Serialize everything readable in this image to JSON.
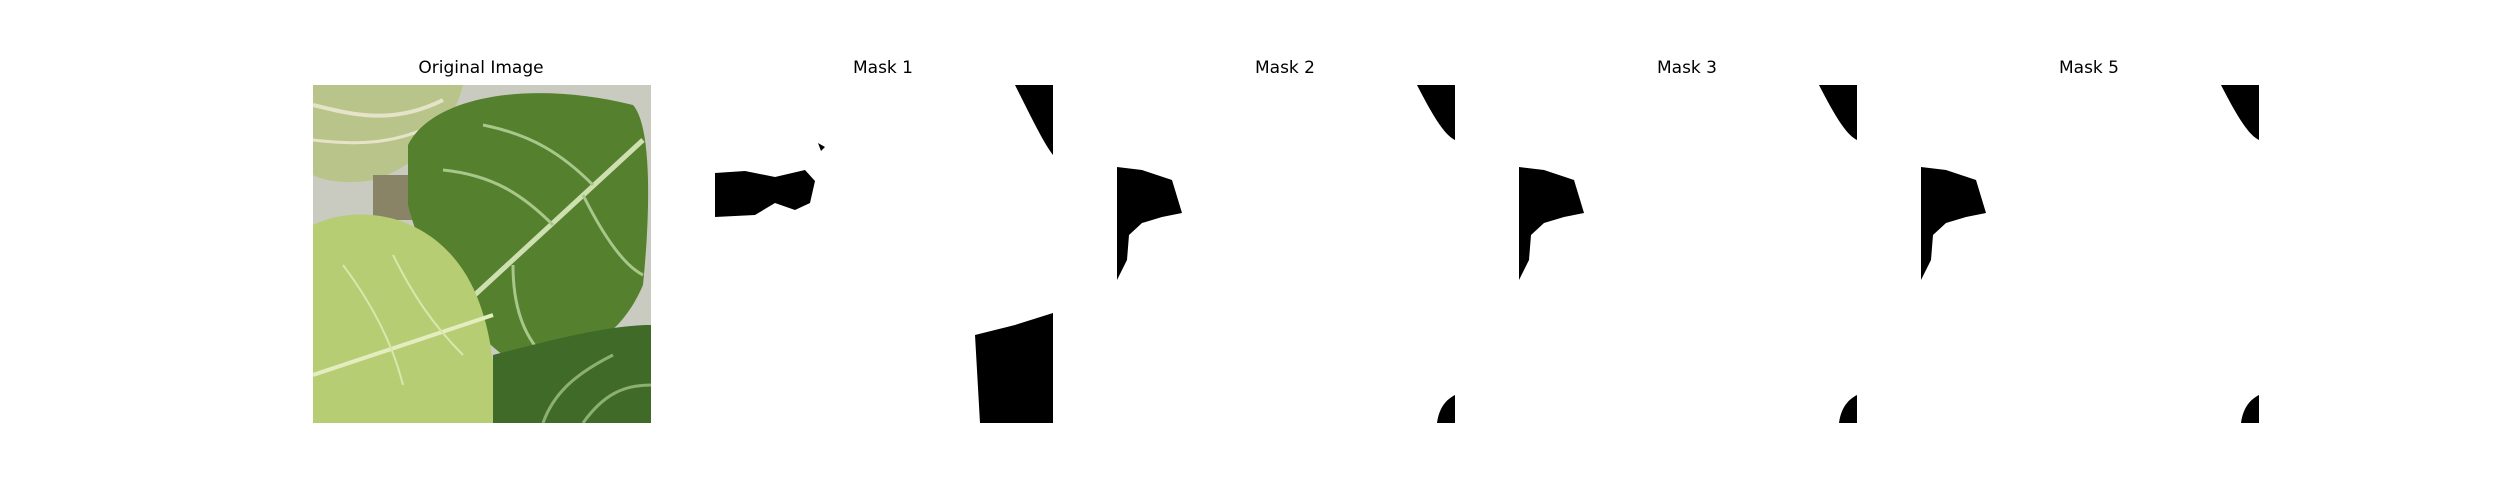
{
  "panels": [
    {
      "title": "Original Image",
      "kind": "photo"
    },
    {
      "title": "Mask 1",
      "kind": "mask"
    },
    {
      "title": "Mask 2",
      "kind": "mask"
    },
    {
      "title": "Mask 3",
      "kind": "mask"
    },
    {
      "title": "Mask 5",
      "kind": "mask"
    }
  ],
  "colors": {
    "background": "#ffffff",
    "mask_foreground": "#ffffff",
    "mask_background": "#000000",
    "leaf_dark": "#4f7a2e",
    "leaf_mid": "#6d9441",
    "leaf_light": "#b9cf78",
    "leaf_pale": "#d6dfa8",
    "shadow_gray": "#c9cbc0"
  }
}
